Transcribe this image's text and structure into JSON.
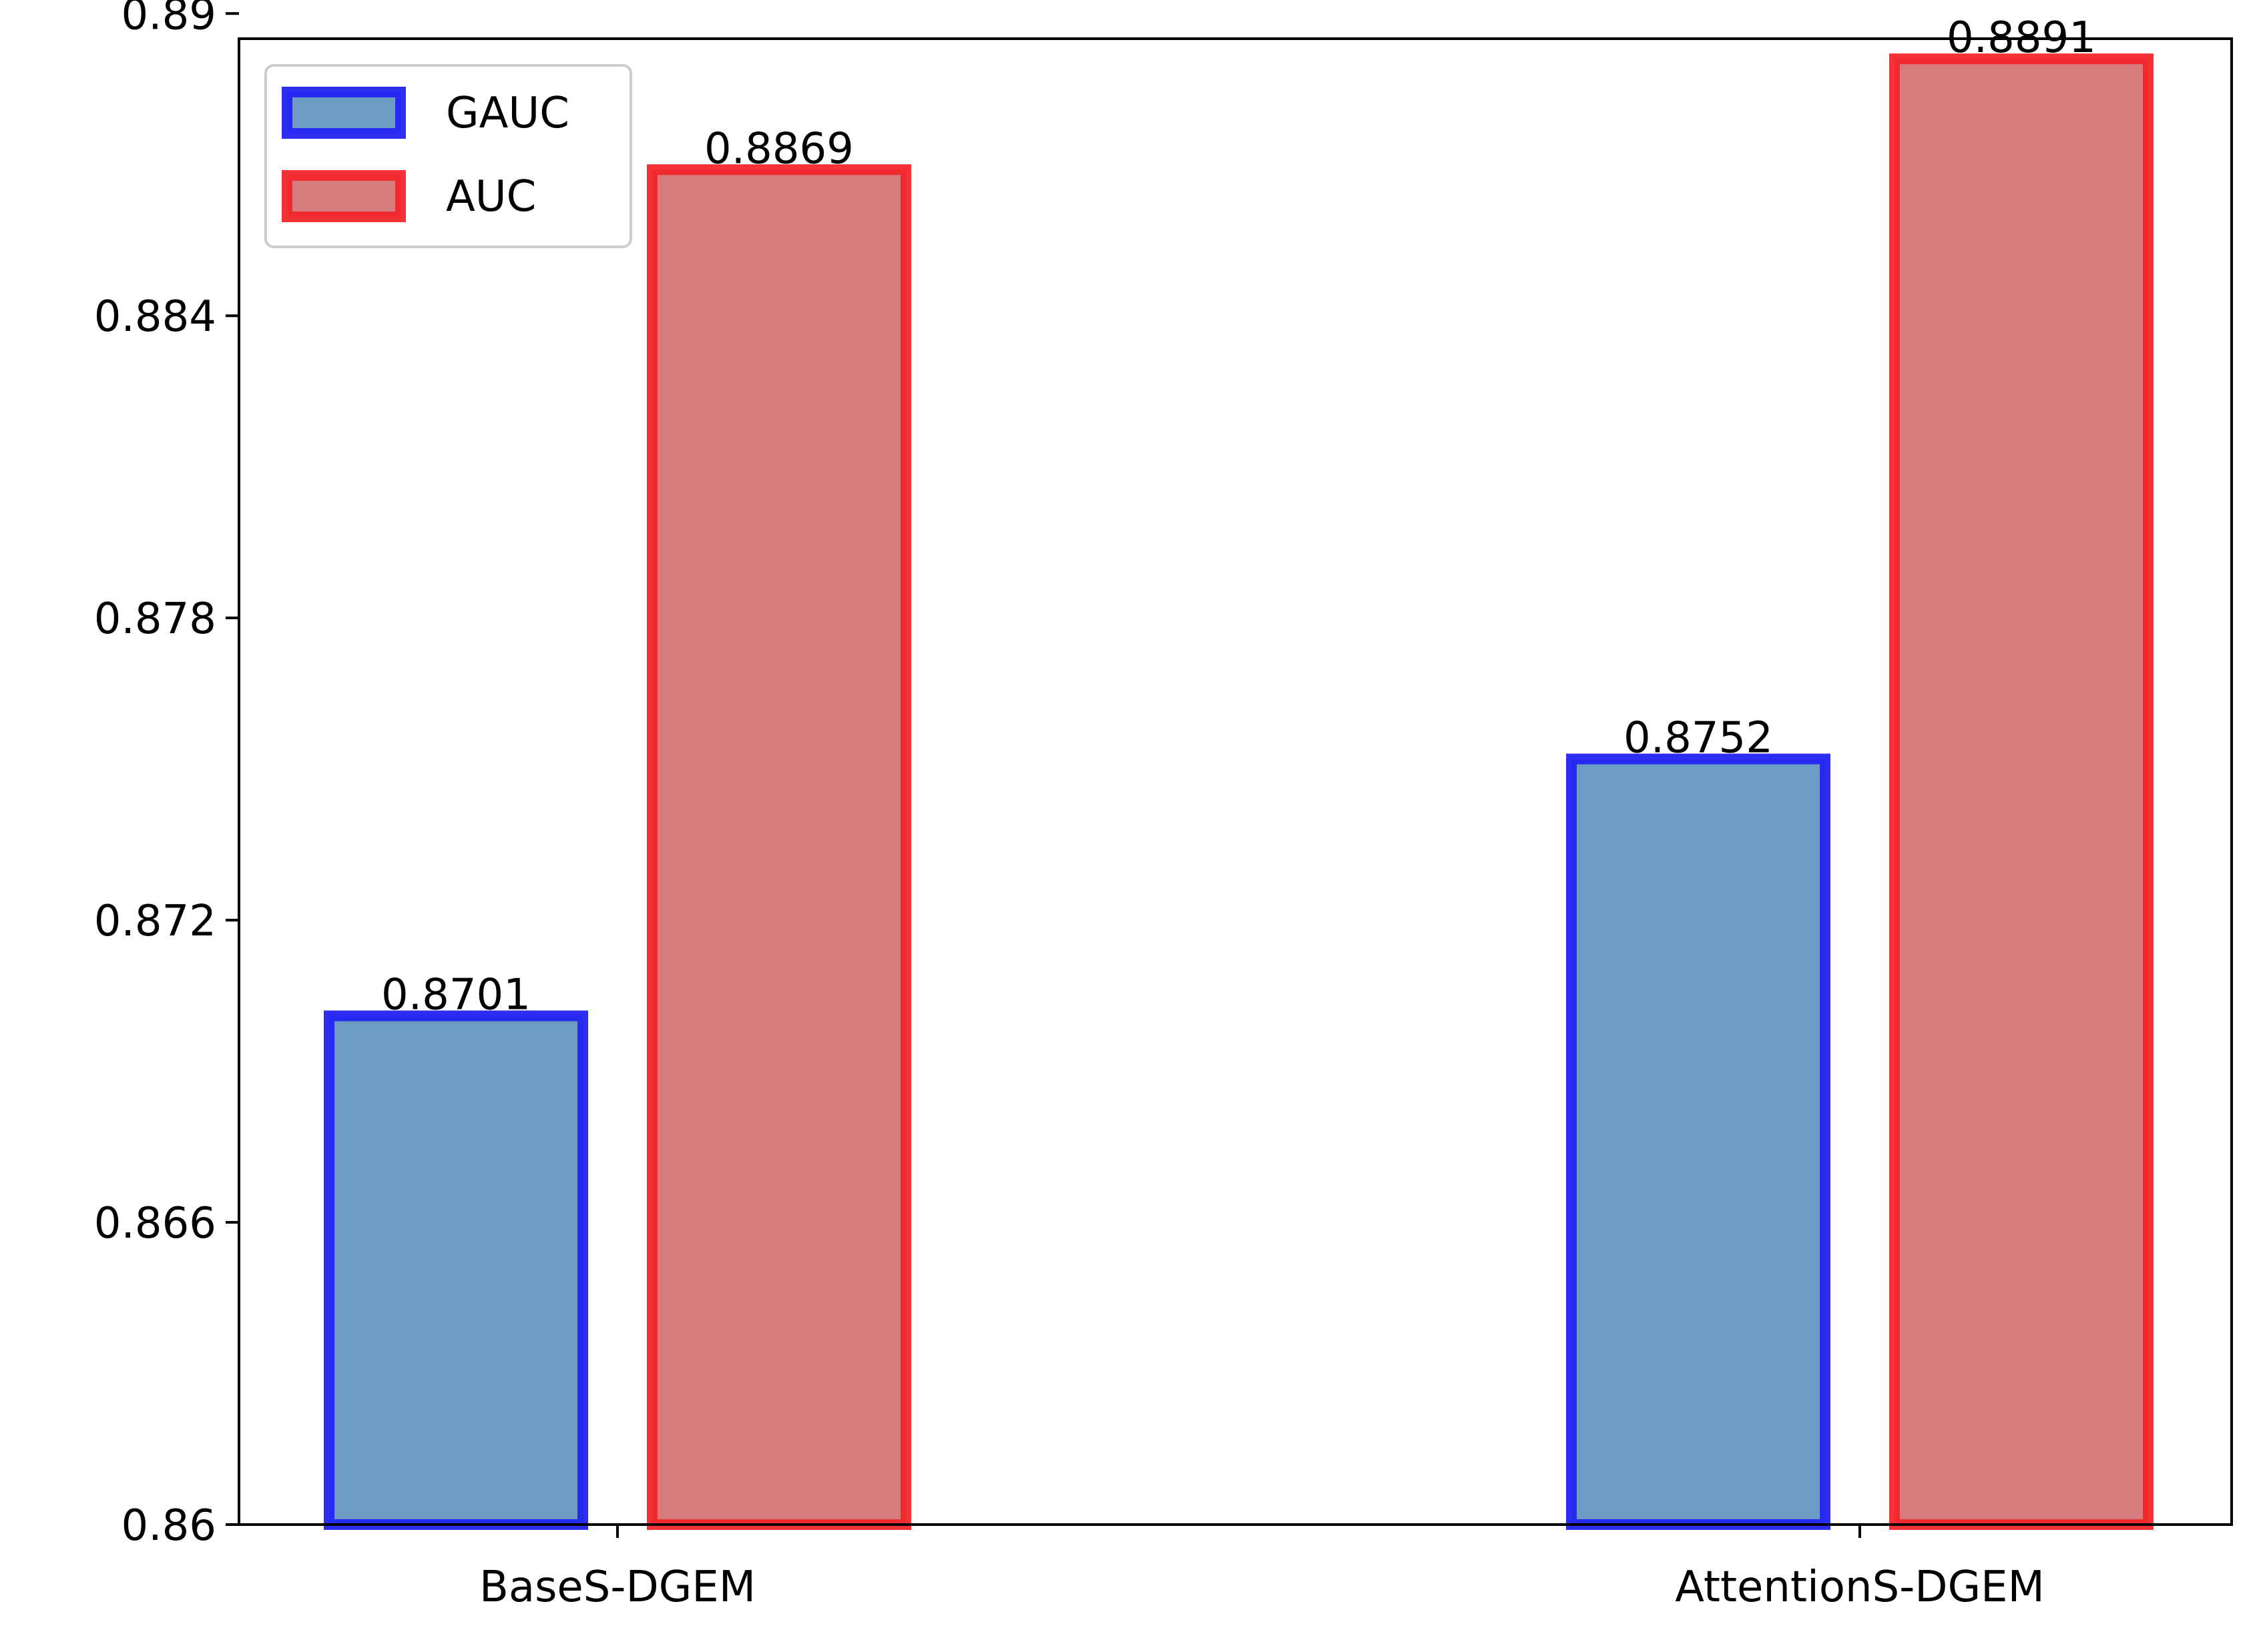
{
  "chart_data": {
    "type": "bar",
    "categories": [
      "BaseS-DGEM",
      "AttentionS-DGEM"
    ],
    "series": [
      {
        "name": "GAUC",
        "values": [
          0.8701,
          0.8752
        ],
        "fill": "#6c9bc3",
        "edge": "#2323f2"
      },
      {
        "name": "AUC",
        "values": [
          0.8869,
          0.8891
        ],
        "fill": "#d67c7c",
        "edge": "#f2262b"
      }
    ],
    "data_labels": [
      [
        "0.8701",
        "0.8752"
      ],
      [
        "0.8869",
        "0.8891"
      ]
    ],
    "ylim": [
      0.86,
      0.8895
    ],
    "yticks": [
      0.86,
      0.866,
      0.872,
      0.878,
      0.884,
      0.89
    ],
    "ytick_labels": [
      "0.86",
      "0.866",
      "0.872",
      "0.878",
      "0.884",
      "0.89"
    ],
    "grid": false,
    "legend_position": "top-left",
    "title": "",
    "xlabel": "",
    "ylabel": ""
  }
}
